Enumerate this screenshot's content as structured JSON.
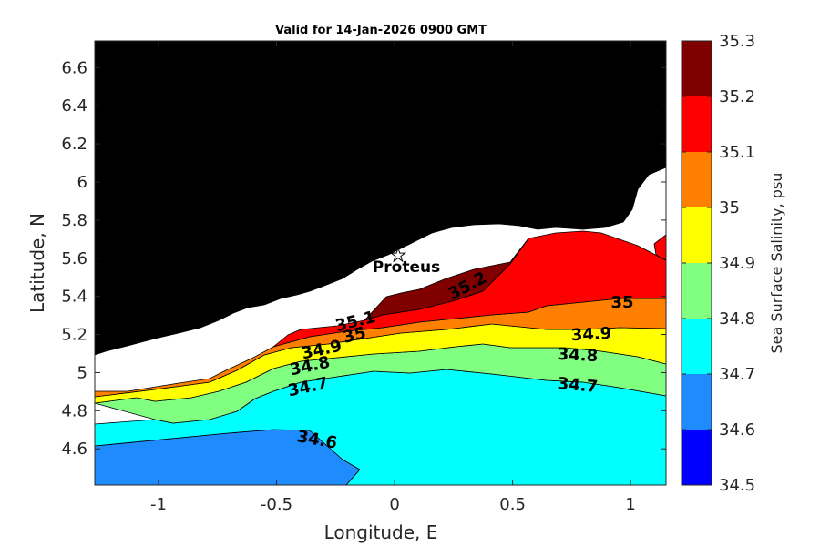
{
  "chart_data": {
    "type": "filled-contour",
    "title": "Valid for 14-Jan-2026 0900 GMT",
    "xlabel": "Longitude, E",
    "ylabel": "Latitude, N",
    "xlim": [
      -1.27,
      1.15
    ],
    "ylim": [
      4.41,
      6.74
    ],
    "xticks": [
      -1,
      -0.5,
      0,
      0.5,
      1
    ],
    "xtick_labels": [
      "-1",
      "-0.5",
      "0",
      "0.5",
      "1"
    ],
    "yticks": [
      4.6,
      4.8,
      5,
      5.2,
      5.4,
      5.6,
      5.8,
      6,
      6.2,
      6.4,
      6.6
    ],
    "ytick_labels": [
      "4.6",
      "4.8",
      "5",
      "5.2",
      "5.4",
      "5.6",
      "5.8",
      "6",
      "6.2",
      "6.4",
      "6.6"
    ],
    "colorbar": {
      "label": "Sea Surface Salinity, psu",
      "min": 34.5,
      "max": 35.3,
      "ticks": [
        34.5,
        34.6,
        34.7,
        34.8,
        34.9,
        35,
        35.1,
        35.2,
        35.3
      ],
      "tick_labels": [
        "34.5",
        "34.6",
        "34.7",
        "34.8",
        "34.9",
        "35",
        "35.1",
        "35.2",
        "35.3"
      ],
      "colors": [
        "#0000ff",
        "#1e8cff",
        "#00ffff",
        "#80ff80",
        "#ffff00",
        "#ff8000",
        "#ff0000",
        "#800000"
      ]
    },
    "levels": [
      {
        "value": 34.6,
        "line": [
          [
            -1.27,
            4.62
          ],
          [
            -1.0,
            4.64
          ],
          [
            -0.5,
            4.67
          ],
          [
            -0.3,
            4.66
          ],
          [
            -0.22,
            4.58
          ],
          [
            -0.15,
            4.48
          ],
          [
            -0.25,
            4.43
          ],
          [
            -1.27,
            4.42
          ]
        ]
      },
      {
        "value": 34.7,
        "line": [
          [
            -1.27,
            4.77
          ],
          [
            -1.0,
            4.77
          ],
          [
            -0.9,
            4.75
          ],
          [
            -0.7,
            4.78
          ],
          [
            -0.5,
            4.84
          ],
          [
            -0.3,
            4.88
          ],
          [
            -0.2,
            4.93
          ],
          [
            0,
            4.96
          ],
          [
            0.5,
            4.99
          ],
          [
            0.8,
            4.95
          ],
          [
            1.15,
            4.92
          ]
        ]
      },
      {
        "value": 34.8,
        "line": [
          [
            -1.27,
            4.83
          ],
          [
            -1.0,
            4.85
          ],
          [
            -0.9,
            4.83
          ],
          [
            -0.65,
            4.88
          ],
          [
            -0.45,
            4.95
          ],
          [
            -0.3,
            5.0
          ],
          [
            0,
            5.03
          ],
          [
            0.3,
            5.06
          ],
          [
            0.4,
            5.04
          ],
          [
            0.7,
            5.06
          ],
          [
            1.0,
            5.05
          ],
          [
            1.15,
            5.03
          ]
        ]
      },
      {
        "value": 34.9,
        "line": [
          [
            -1.27,
            4.87
          ],
          [
            -1.0,
            4.89
          ],
          [
            -0.7,
            4.93
          ],
          [
            -0.5,
            5.01
          ],
          [
            -0.35,
            5.08
          ],
          [
            0,
            5.12
          ],
          [
            0.2,
            5.15
          ],
          [
            0.4,
            5.17
          ],
          [
            0.7,
            5.21
          ],
          [
            1.0,
            5.26
          ],
          [
            1.15,
            5.28
          ]
        ]
      },
      {
        "value": 35.0,
        "line": [
          [
            -1.27,
            4.89
          ],
          [
            -1.0,
            4.92
          ],
          [
            -0.72,
            4.94
          ],
          [
            -0.55,
            5.0
          ],
          [
            -0.4,
            5.09
          ],
          [
            -0.3,
            5.17
          ],
          [
            0,
            5.2
          ],
          [
            0.3,
            5.23
          ],
          [
            0.5,
            5.24
          ],
          [
            0.7,
            5.29
          ],
          [
            1.0,
            5.33
          ],
          [
            1.15,
            5.36
          ]
        ]
      },
      {
        "value": 35.1,
        "line": [
          [
            -0.45,
            5.23
          ],
          [
            -0.3,
            5.25
          ],
          [
            -0.2,
            5.25
          ],
          [
            0,
            5.3
          ],
          [
            0.3,
            5.33
          ],
          [
            0.5,
            5.38
          ],
          [
            0.7,
            5.43
          ],
          [
            1.0,
            5.41
          ],
          [
            1.15,
            5.48
          ]
        ]
      },
      {
        "value": 35.2,
        "line": [
          [
            0.02,
            5.38
          ],
          [
            0.2,
            5.4
          ],
          [
            0.35,
            5.46
          ],
          [
            0.4,
            5.52
          ]
        ]
      }
    ],
    "contour_labels": [
      "34.6",
      "34.7",
      "34.8",
      "34.9",
      "35",
      "35.1",
      "35.2",
      "34.7",
      "34.8",
      "34.9",
      "35"
    ],
    "station": {
      "name": "Proteus",
      "lon": 0.02,
      "lat": 5.63
    },
    "land": "black",
    "no_data": "white"
  }
}
